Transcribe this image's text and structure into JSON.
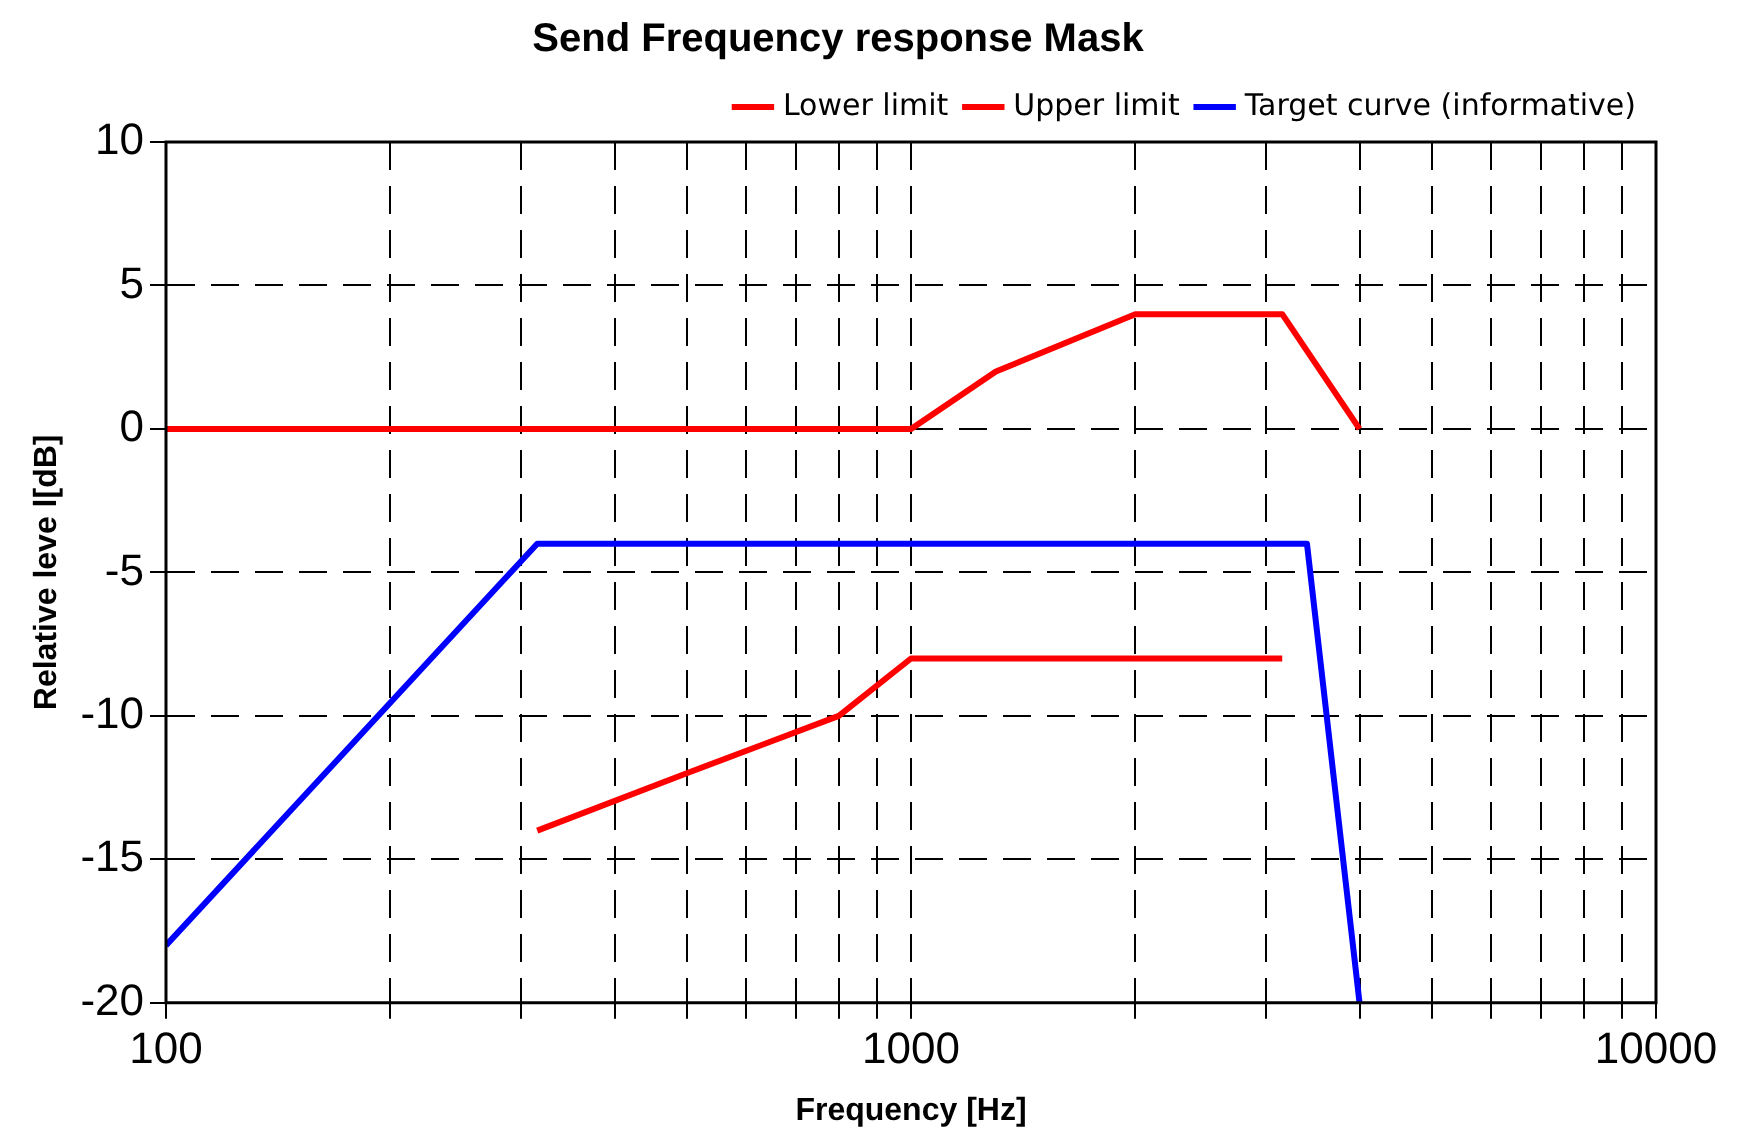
{
  "chart_data": {
    "type": "line",
    "title": "Send Frequency response Mask",
    "xlabel": "Frequency [Hz]",
    "ylabel": "Relative leve l[dB]",
    "log": "x",
    "grid": true,
    "legend": "top right",
    "marker": "none",
    "line_style": "solid",
    "xlim": [
      100,
      10000
    ],
    "ylim": [
      -20,
      10
    ],
    "xticks": [
      100,
      {
        "value": 200,
        "label": null
      },
      {
        "value": 300,
        "label": null
      },
      {
        "value": 400,
        "label": null
      },
      {
        "value": 500,
        "label": null
      },
      {
        "value": 600,
        "label": null
      },
      {
        "value": 700,
        "label": null
      },
      {
        "value": 800,
        "label": null
      },
      {
        "value": 900,
        "label": null
      },
      1000,
      {
        "value": 2000,
        "label": null
      },
      {
        "value": 3000,
        "label": null
      },
      {
        "value": 4000,
        "label": null
      },
      {
        "value": 5000,
        "label": null
      },
      {
        "value": 6000,
        "label": null
      },
      {
        "value": 7000,
        "label": null
      },
      {
        "value": 8000,
        "label": null
      },
      {
        "value": 9000,
        "label": null
      },
      10000
    ],
    "yticks": [
      -20,
      -15,
      -10,
      -5,
      0,
      5,
      10
    ],
    "series": [
      {
        "name": "Lower limit",
        "color": "#ff0000",
        "x": [
          315,
          500,
          800,
          1000,
          3150
        ],
        "values": [
          -14,
          -12,
          -10,
          -8,
          -8
        ]
      },
      {
        "name": "Upper limit",
        "color": "#ff0000",
        "x": [
          100,
          1000,
          1300,
          2000,
          3150,
          4000
        ],
        "values": [
          0,
          0,
          2,
          4,
          4,
          0
        ]
      },
      {
        "name": "Target curve (informative)",
        "color": "#0000ff",
        "x": [
          100,
          315,
          3400,
          4000
        ],
        "values": [
          -18,
          -4,
          -4,
          -20
        ]
      }
    ]
  }
}
